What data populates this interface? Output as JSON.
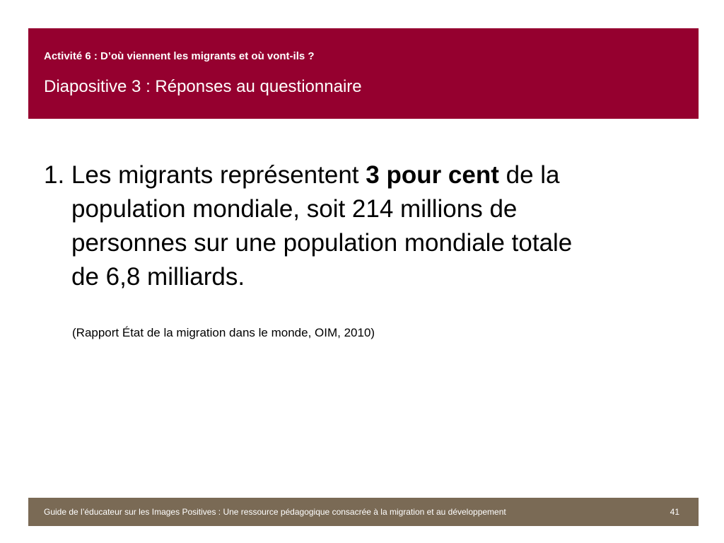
{
  "header": {
    "activity": "Activité 6 : D’où viennent les migrants et où vont-ils ?",
    "slide_title": "Diapositive 3 : Réponses au questionnaire",
    "band_color": "#95002f"
  },
  "body": {
    "line1_before_bold": "1. Les migrants représentent ",
    "line1_bold": "3 pour cent",
    "line1_after_bold": " de la",
    "line2": "population mondiale, soit 214 millions de",
    "line3": "personnes sur une population mondiale totale",
    "line4": "de 6,8 milliards.",
    "source": "(Rapport État de la migration dans le monde, OIM, 2010)"
  },
  "footer": {
    "text": "Guide de l’éducateur sur les Images Positives : Une ressource pédagogique consacrée à la migration et au développement",
    "page_number": "41",
    "band_color": "#7a6a55"
  }
}
